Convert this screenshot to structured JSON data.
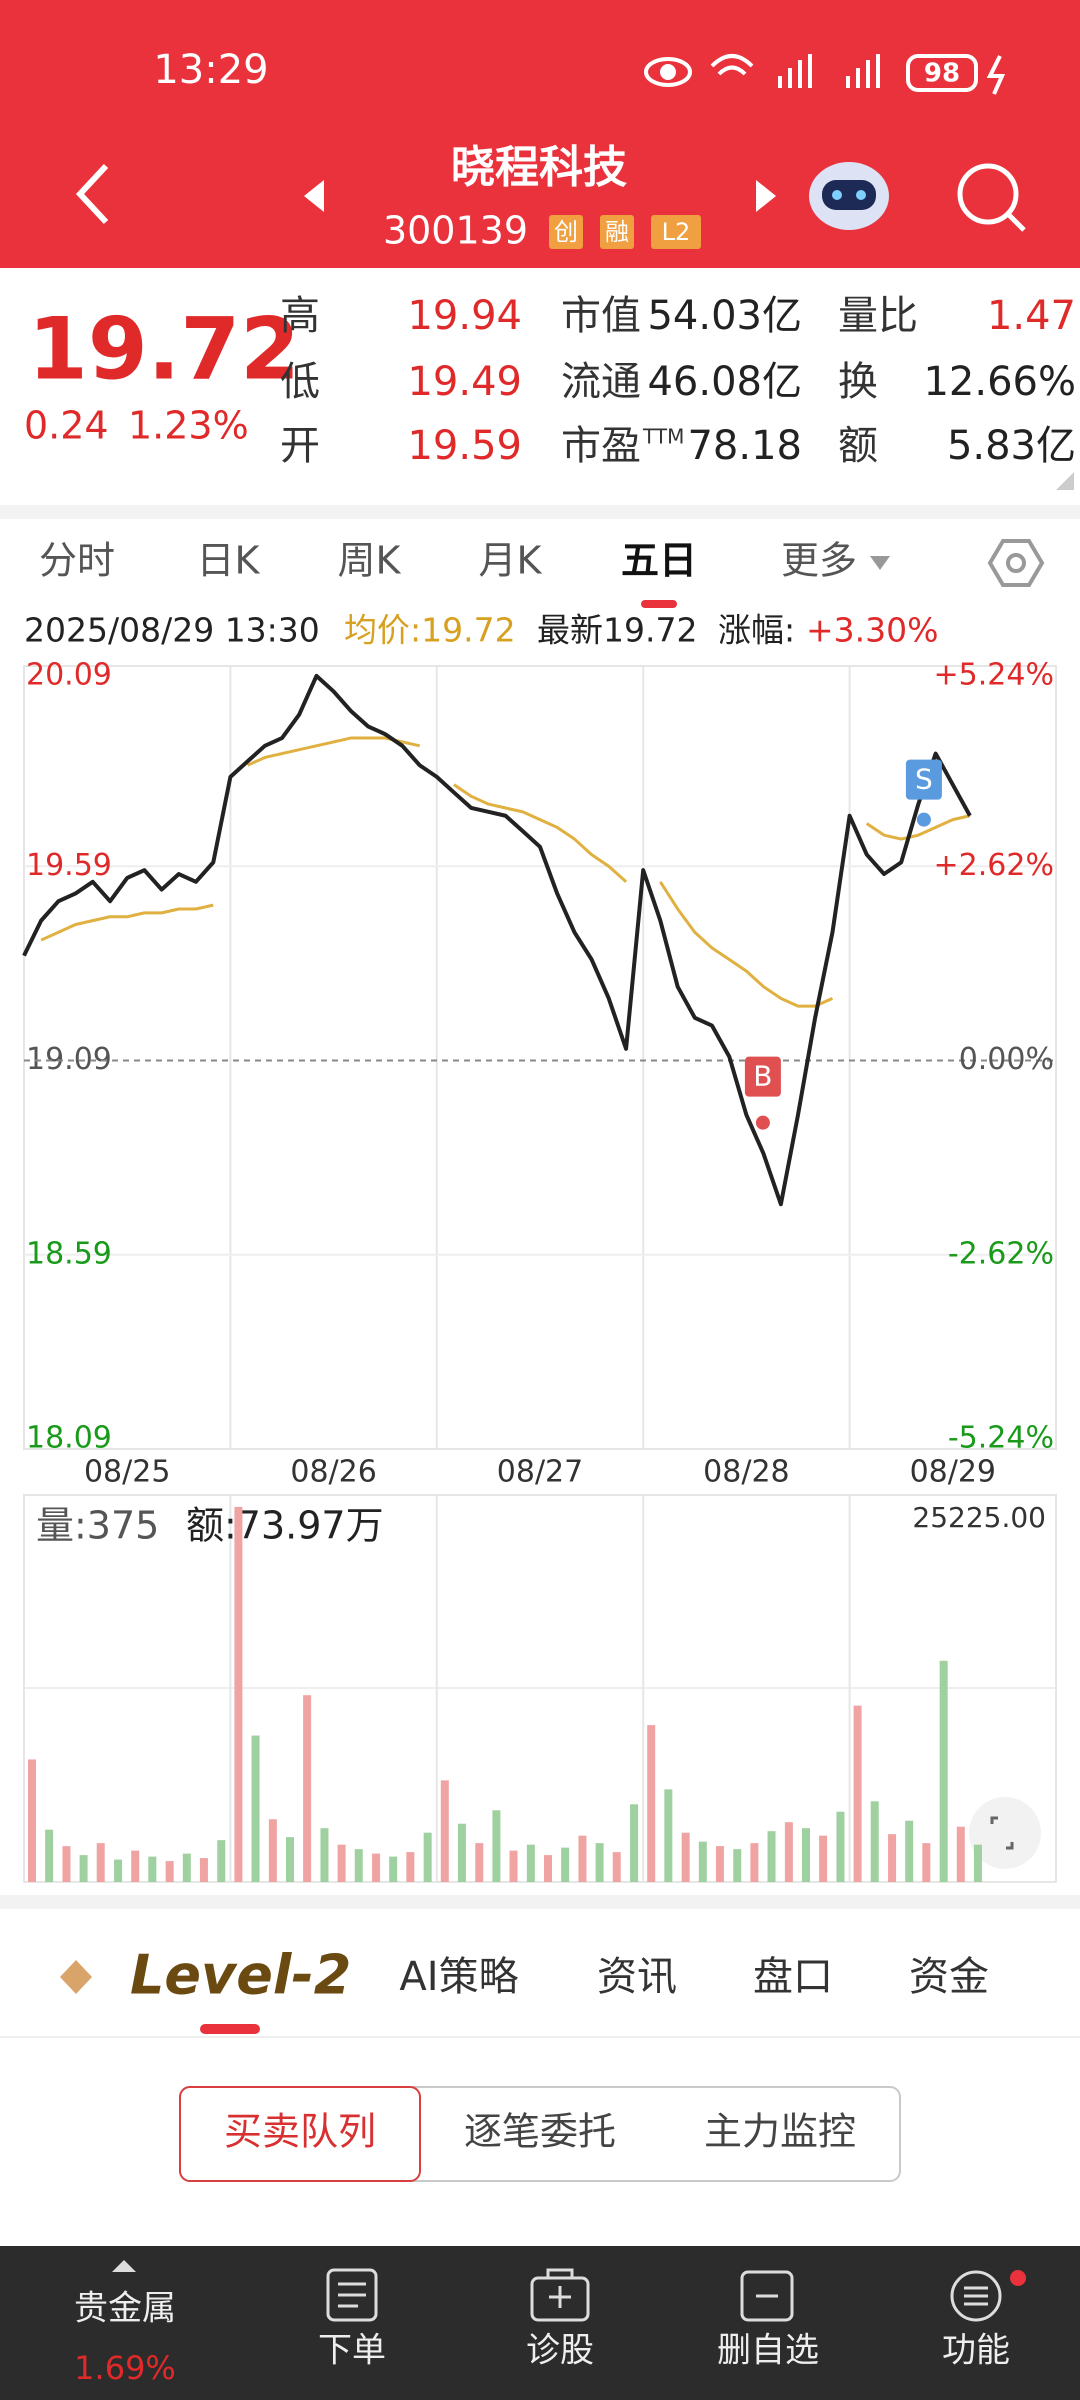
{
  "status_bar": {
    "time": "13:29",
    "battery": "98"
  },
  "header": {
    "name": "晓程科技",
    "code": "300139",
    "tags": [
      "创",
      "融",
      "L2"
    ]
  },
  "quote": {
    "price": "19.72",
    "change": "0.24",
    "change_pct": "1.23%",
    "stats": [
      {
        "label": "高",
        "value": "19.94",
        "color": "#e02a2a"
      },
      {
        "label": "低",
        "value": "19.49",
        "color": "#e02a2a"
      },
      {
        "label": "开",
        "value": "19.59",
        "color": "#e02a2a"
      },
      {
        "label": "市值",
        "value": "54.03亿",
        "color": "#222222"
      },
      {
        "label": "流通",
        "value": "46.08亿",
        "color": "#222222"
      },
      {
        "label": "市盈",
        "suffix": "TTM",
        "value": "78.18",
        "color": "#222222"
      },
      {
        "label": "量比",
        "value": "1.47",
        "color": "#e02a2a"
      },
      {
        "label": "换",
        "value": "12.66%",
        "color": "#222222"
      },
      {
        "label": "额",
        "value": "5.83亿",
        "color": "#222222"
      }
    ]
  },
  "period_tabs": {
    "items": [
      "分时",
      "日K",
      "周K",
      "月K",
      "五日",
      "更多"
    ],
    "active": 4
  },
  "info": {
    "datetime": "2025/08/29 13:30",
    "avg": "均价:19.72",
    "latest": "最新19.72",
    "change_label": "涨幅:",
    "change": "+3.30%"
  },
  "chart_data": [
    {
      "type": "line",
      "ref": 19.09,
      "x": [
        0,
        0.083,
        0.167,
        0.25,
        0.333,
        0.417,
        0.5,
        0.583,
        0.667,
        0.75,
        0.833,
        0.917,
        1,
        1.083,
        1.167,
        1.25,
        1.333,
        1.417,
        1.5,
        1.583,
        1.667,
        1.75,
        1.833,
        1.917,
        2,
        2.083,
        2.167,
        2.25,
        2.333,
        2.417,
        2.5,
        2.583,
        2.667,
        2.75,
        2.833,
        2.917,
        3,
        3.083,
        3.167,
        3.25,
        3.333,
        3.417,
        3.5,
        3.583,
        3.667,
        3.75,
        3.833,
        3.917,
        4,
        4.083,
        4.167,
        4.25,
        4.333,
        4.417,
        4.5,
        4.583
      ],
      "series": [
        {
          "name": "price",
          "color": "#222222",
          "values": [
            19.36,
            19.45,
            19.5,
            19.52,
            19.55,
            19.5,
            19.56,
            19.58,
            19.53,
            19.57,
            19.55,
            19.6,
            19.82,
            19.86,
            19.9,
            19.92,
            19.98,
            20.08,
            20.04,
            19.99,
            19.95,
            19.93,
            19.9,
            19.85,
            19.82,
            19.78,
            19.74,
            19.73,
            19.72,
            19.68,
            19.64,
            19.52,
            19.42,
            19.35,
            19.25,
            19.12,
            19.58,
            19.45,
            19.28,
            19.2,
            19.18,
            19.1,
            18.95,
            18.85,
            18.72,
            18.95,
            19.2,
            19.42,
            19.72,
            19.62,
            19.57,
            19.6,
            19.75,
            19.88,
            19.8,
            19.72
          ]
        },
        {
          "name": "avg",
          "color": "#e0b040",
          "values": [
            null,
            19.4,
            19.42,
            19.44,
            19.45,
            19.46,
            19.46,
            19.47,
            19.47,
            19.48,
            19.48,
            19.49,
            null,
            19.85,
            19.87,
            19.88,
            19.89,
            19.9,
            19.91,
            19.92,
            19.92,
            19.92,
            19.91,
            19.9,
            null,
            19.8,
            19.77,
            19.75,
            19.74,
            19.73,
            19.71,
            19.69,
            19.66,
            19.62,
            19.59,
            19.55,
            null,
            19.55,
            19.48,
            19.42,
            19.38,
            19.35,
            19.32,
            19.28,
            19.25,
            19.23,
            19.23,
            19.25,
            null,
            19.7,
            19.67,
            19.66,
            19.67,
            19.69,
            19.71,
            19.72
          ]
        }
      ],
      "xlim": [
        0,
        5
      ],
      "xticks": [
        {
          "value": 0.5,
          "label": "08/25"
        },
        {
          "value": 1.5,
          "label": "08/26"
        },
        {
          "value": 2.5,
          "label": "08/27"
        },
        {
          "value": 3.5,
          "label": "08/28"
        },
        {
          "value": 4.5,
          "label": "08/29"
        }
      ],
      "ylim": [
        18.09,
        20.09
      ],
      "yticks": [
        20.09,
        19.59,
        19.09,
        18.59,
        18.09
      ],
      "y2lim": [
        -5.24,
        5.24
      ],
      "y2ticks": [
        {
          "value": 5.24,
          "label": "+5.24%"
        },
        {
          "value": 2.62,
          "label": "+2.62%"
        },
        {
          "value": 0,
          "label": "0.00%"
        },
        {
          "value": -2.62,
          "label": "-2.62%"
        },
        {
          "value": -5.24,
          "label": "-5.24%"
        }
      ],
      "annotations": [
        {
          "text": "B",
          "x": 3.58,
          "y": 18.93,
          "color": "#e05050"
        },
        {
          "text": "S",
          "x": 4.36,
          "y": 19.71,
          "color": "#5a9be0"
        }
      ]
    },
    {
      "type": "bar",
      "title": "量:375",
      "subtitle": "额:73.97万",
      "colors": [
        "#f0a3a3",
        "#9fd09f"
      ],
      "x": [
        0,
        0.083,
        0.167,
        0.25,
        0.333,
        0.417,
        0.5,
        0.583,
        0.667,
        0.75,
        0.833,
        0.917,
        1,
        1.083,
        1.167,
        1.25,
        1.333,
        1.417,
        1.5,
        1.583,
        1.667,
        1.75,
        1.833,
        1.917,
        2,
        2.083,
        2.167,
        2.25,
        2.333,
        2.417,
        2.5,
        2.583,
        2.667,
        2.75,
        2.833,
        2.917,
        3,
        3.083,
        3.167,
        3.25,
        3.333,
        3.417,
        3.5,
        3.583,
        3.667,
        3.75,
        3.833,
        3.917,
        4,
        4.083,
        4.167,
        4.25,
        4.333,
        4.417,
        4.5,
        4.583
      ],
      "values": [
        8200,
        3500,
        2400,
        1800,
        2600,
        1500,
        2100,
        1700,
        1400,
        1900,
        1600,
        2800,
        25100,
        9800,
        4200,
        3000,
        12500,
        3600,
        2500,
        2200,
        1900,
        1700,
        2000,
        3300,
        6800,
        3900,
        2600,
        4800,
        2100,
        2500,
        1800,
        2300,
        3100,
        2600,
        2000,
        5200,
        10500,
        6200,
        3300,
        2700,
        2400,
        2200,
        2600,
        3400,
        4000,
        3600,
        3100,
        4700,
        11800,
        5400,
        3200,
        4100,
        2600,
        14800,
        3700,
        2500
      ],
      "xlim": [
        0,
        5
      ],
      "ylim": [
        0,
        25225
      ],
      "yticks": [
        {
          "value": 25225,
          "label": "25225.00"
        }
      ]
    }
  ],
  "detail_tabs": [
    "Level-2",
    "AI策略",
    "资讯",
    "盘口",
    "资金"
  ],
  "queue_tabs": [
    "买卖队列",
    "逐笔委托",
    "主力监控"
  ],
  "bottom_nav": [
    {
      "label": "贵金属",
      "sub": "1.69%"
    },
    {
      "label": "下单"
    },
    {
      "label": "诊股"
    },
    {
      "label": "删自选"
    },
    {
      "label": "功能"
    }
  ]
}
